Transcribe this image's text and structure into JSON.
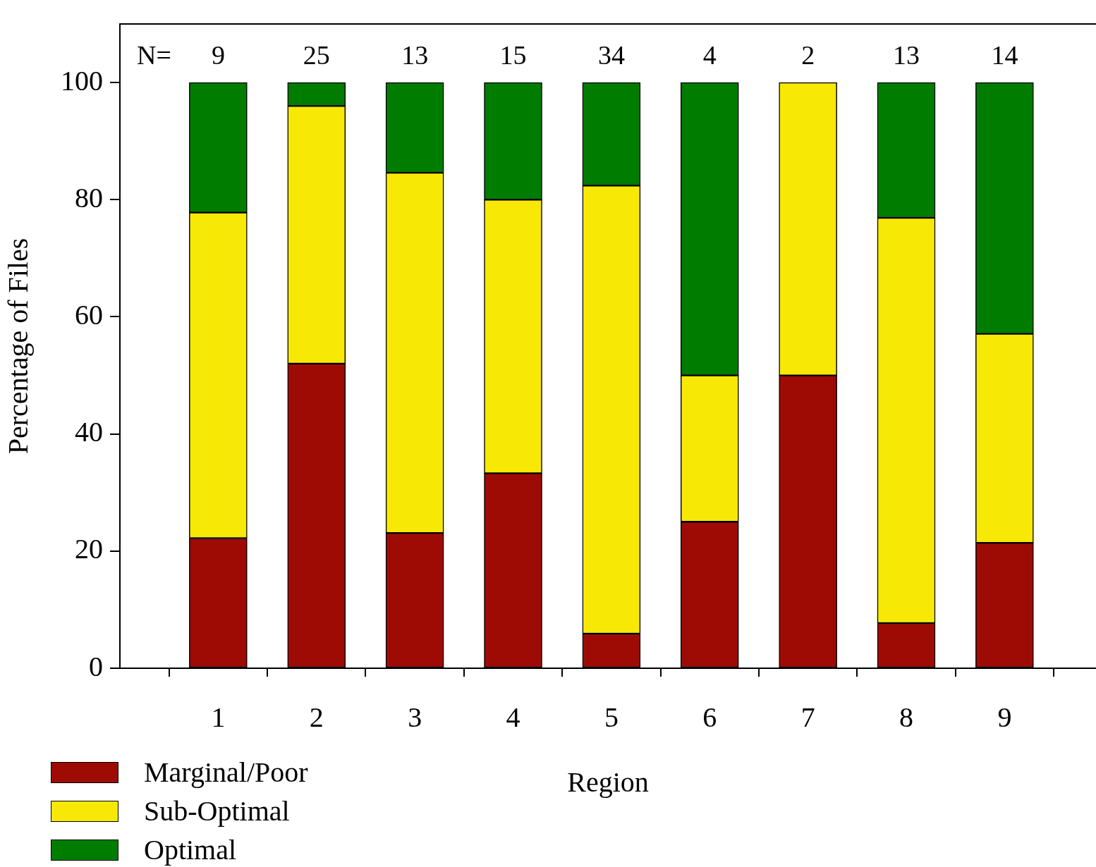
{
  "chart_data": {
    "type": "bar",
    "stacked": true,
    "xlabel": "Region",
    "ylabel": "Percentage of Files",
    "categories": [
      "1",
      "2",
      "3",
      "4",
      "5",
      "6",
      "7",
      "8",
      "9"
    ],
    "series": [
      {
        "name": "Marginal/Poor",
        "color": "#9e0b05",
        "values": [
          22.2,
          52,
          23.1,
          33.3,
          5.9,
          25,
          50,
          7.7,
          21.4
        ]
      },
      {
        "name": "Sub-Optimal",
        "color": "#f8e805",
        "values": [
          55.6,
          44,
          61.5,
          46.7,
          76.5,
          25,
          50,
          69.2,
          35.7
        ]
      },
      {
        "name": "Optimal",
        "color": "#007c00",
        "values": [
          22.2,
          4,
          15.4,
          20,
          17.6,
          50,
          0,
          23.1,
          42.9
        ]
      }
    ],
    "ylim": [
      0,
      110
    ],
    "yticks": [
      0,
      20,
      40,
      60,
      80,
      100
    ],
    "grid": false,
    "legend": "bottom left",
    "annotations": [
      "N=",
      "9",
      "25",
      "13",
      "15",
      "34",
      "4",
      "2",
      "13",
      "14"
    ]
  }
}
